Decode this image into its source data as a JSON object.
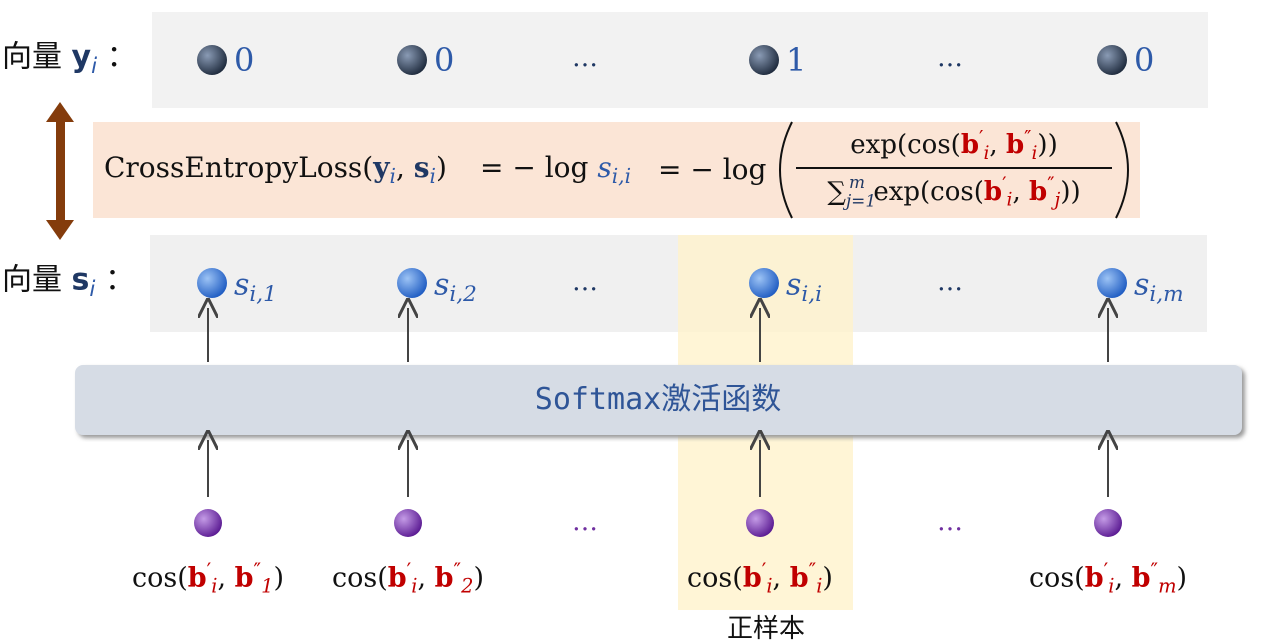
{
  "y_row": {
    "label": [
      "向量 ",
      "y",
      "i",
      " ："
    ],
    "values": [
      0,
      0,
      "…",
      1,
      "…",
      0
    ]
  },
  "formula": {
    "loss": [
      "CrossEntropyLoss(",
      "y",
      "i",
      ", ",
      "s",
      "i",
      ")"
    ],
    "eq1": [
      "= − log ",
      "s",
      "i,i"
    ],
    "eq2": [
      "= − log"
    ],
    "numerator": [
      "exp(cos(",
      "b",
      "′",
      "i",
      ", ",
      "b",
      "″",
      "i",
      "))"
    ],
    "denominator": [
      "∑",
      "j=1",
      "m",
      " exp(cos(",
      "b",
      "′",
      "i",
      ", ",
      "b",
      "″",
      "j",
      "))"
    ]
  },
  "s_row": {
    "label": [
      "向量 ",
      "s",
      "i",
      " ："
    ],
    "items": [
      [
        "s",
        "i,1"
      ],
      [
        "s",
        "i,2"
      ],
      [
        "…"
      ],
      [
        "s",
        "i,i"
      ],
      [
        "…"
      ],
      [
        "s",
        "i,m"
      ]
    ]
  },
  "softmax": "Softmax激活函数",
  "inputs": [
    [
      "cos(",
      "b",
      "′",
      "i",
      ", ",
      "b",
      "″",
      "1",
      ")"
    ],
    [
      "cos(",
      "b",
      "′",
      "i",
      ", ",
      "b",
      "″",
      "2",
      ")"
    ],
    [
      "…"
    ],
    [
      "cos(",
      "b",
      "′",
      "i",
      ", ",
      "b",
      "″",
      "i",
      ")"
    ],
    [
      "…"
    ],
    [
      "cos(",
      "b",
      "′",
      "i",
      ", ",
      "b",
      "″",
      "m",
      ")"
    ]
  ],
  "positive_label": "正样本"
}
